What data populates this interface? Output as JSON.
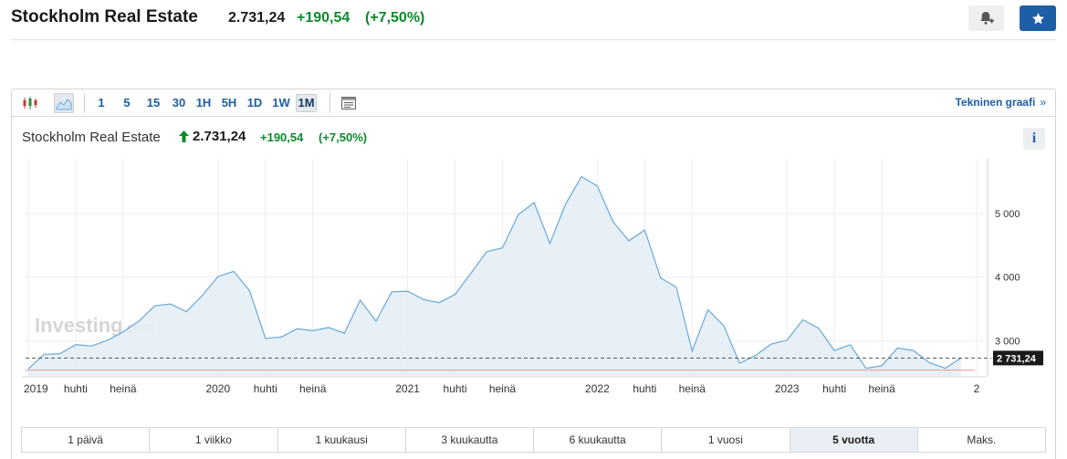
{
  "header": {
    "title": "Stockholm Real Estate",
    "price": "2.731,24",
    "change": "+190,54",
    "change_pct": "(+7,50%)"
  },
  "toolbar": {
    "intervals": [
      "1",
      "5",
      "15",
      "30",
      "1H",
      "5H",
      "1D",
      "1W",
      "1M"
    ],
    "selected_interval": "1M",
    "tech_chart_link": "Tekninen graafi",
    "tech_chart_arrow": "»"
  },
  "chart_header": {
    "name": "Stockholm Real Estate",
    "price": "2.731,24",
    "change": "+190,54",
    "change_pct": "(+7,50%)",
    "info": "i"
  },
  "watermark": {
    "brand": "Investing",
    "suffix": ".com"
  },
  "chart_data": {
    "type": "area",
    "x": [
      "2019-01",
      "2019-02",
      "2019-03",
      "2019-04",
      "2019-05",
      "2019-06",
      "2019-07",
      "2019-08",
      "2019-09",
      "2019-10",
      "2019-11",
      "2019-12",
      "2020-01",
      "2020-02",
      "2020-03",
      "2020-04",
      "2020-05",
      "2020-06",
      "2020-07",
      "2020-08",
      "2020-09",
      "2020-10",
      "2020-11",
      "2020-12",
      "2021-01",
      "2021-02",
      "2021-03",
      "2021-04",
      "2021-05",
      "2021-06",
      "2021-07",
      "2021-08",
      "2021-09",
      "2021-10",
      "2021-11",
      "2021-12",
      "2022-01",
      "2022-02",
      "2022-03",
      "2022-04",
      "2022-05",
      "2022-06",
      "2022-07",
      "2022-08",
      "2022-09",
      "2022-10",
      "2022-11",
      "2022-12",
      "2023-01",
      "2023-02",
      "2023-03",
      "2023-04",
      "2023-05",
      "2023-06",
      "2023-07",
      "2023-08",
      "2023-09",
      "2023-10",
      "2023-11",
      "2023-12"
    ],
    "values": [
      2560,
      2790,
      2800,
      2940,
      2920,
      3010,
      3140,
      3310,
      3550,
      3580,
      3460,
      3710,
      4010,
      4090,
      3790,
      3040,
      3060,
      3190,
      3160,
      3210,
      3120,
      3640,
      3310,
      3770,
      3780,
      3650,
      3600,
      3730,
      4060,
      4400,
      4460,
      4980,
      5170,
      4530,
      5150,
      5580,
      5430,
      4870,
      4570,
      4740,
      3990,
      3840,
      2840,
      3490,
      3240,
      2650,
      2770,
      2950,
      3010,
      3330,
      3200,
      2850,
      2940,
      2570,
      2610,
      2890,
      2850,
      2660,
      2570,
      2731.24
    ],
    "y_ticks": [
      3000,
      4000,
      5000
    ],
    "y_tick_labels": [
      "3 000",
      "4 000",
      "5 000"
    ],
    "ylim": [
      2450,
      5800
    ],
    "x_tick_labels": [
      "2019",
      "huhti",
      "heinä",
      "2020",
      "huhti",
      "heinä",
      "2021",
      "huhti",
      "heinä",
      "2022",
      "huhti",
      "heinä",
      "2023",
      "huhti",
      "heinä",
      "2"
    ],
    "x_tick_dates": [
      "2019-01",
      "2019-04",
      "2019-07",
      "2020-01",
      "2020-04",
      "2020-07",
      "2021-01",
      "2021-04",
      "2021-07",
      "2022-01",
      "2022-04",
      "2022-07",
      "2023-01",
      "2023-04",
      "2023-07",
      "2024-01"
    ],
    "last_value": 2731.24,
    "last_value_label": "2 731,24",
    "previous_close": 2540.7,
    "line_color": "#6aa8d8",
    "fill_color": "#e3edf6",
    "prev_close_color": "#e39b9b",
    "last_label_bg": "#1a1a1a",
    "grid": true
  },
  "ranges": {
    "items": [
      "1 päivä",
      "1 viikko",
      "1 kuukausi",
      "3 kuukautta",
      "6 kuukautta",
      "1 vuosi",
      "5 vuotta",
      "Maks."
    ],
    "selected": "5 vuotta"
  }
}
